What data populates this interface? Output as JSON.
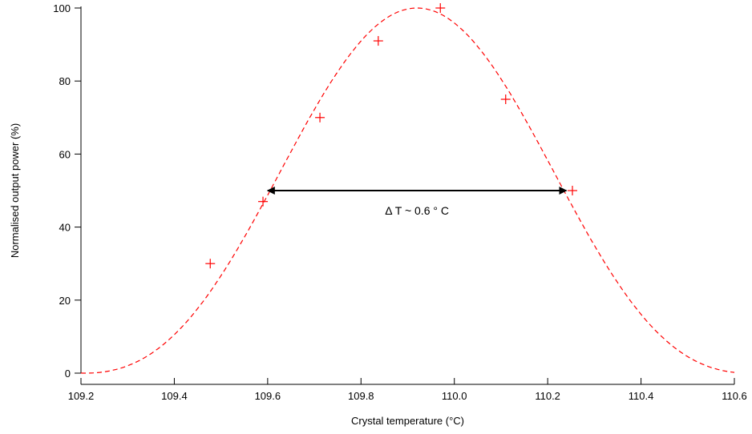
{
  "chart_data": {
    "type": "scatter",
    "xlabel": "Crystal temperature (°C)",
    "ylabel": "Normalised output power (%)",
    "xlim": [
      109.2,
      110.6
    ],
    "ylim": [
      0,
      100
    ],
    "x_ticks": [
      "109.2",
      "109.4",
      "109.6",
      "109.8",
      "110.0",
      "110.2",
      "110.4",
      "110.6"
    ],
    "y_ticks": [
      "0",
      "20",
      "40",
      "60",
      "80",
      "100"
    ],
    "grid": false,
    "legend": "none",
    "series": [
      {
        "kind": "measured-points",
        "marker": "plus",
        "color": "#ff0000",
        "x": [
          109.477,
          109.59,
          109.712,
          109.837,
          109.97,
          110.11,
          110.253
        ],
        "y": [
          30,
          47,
          70,
          91,
          100,
          75,
          50
        ]
      },
      {
        "kind": "fit-curve",
        "style": "dashed",
        "color": "#ff0000",
        "x_range": [
          109.2,
          110.6
        ],
        "peak_x": 109.92,
        "peak_y": 100
      }
    ],
    "annotation": {
      "text": "Δ T ~ 0.6 ° C",
      "arrow_color": "#000000",
      "x_from": 109.6,
      "x_to": 110.24,
      "y": 50
    }
  }
}
